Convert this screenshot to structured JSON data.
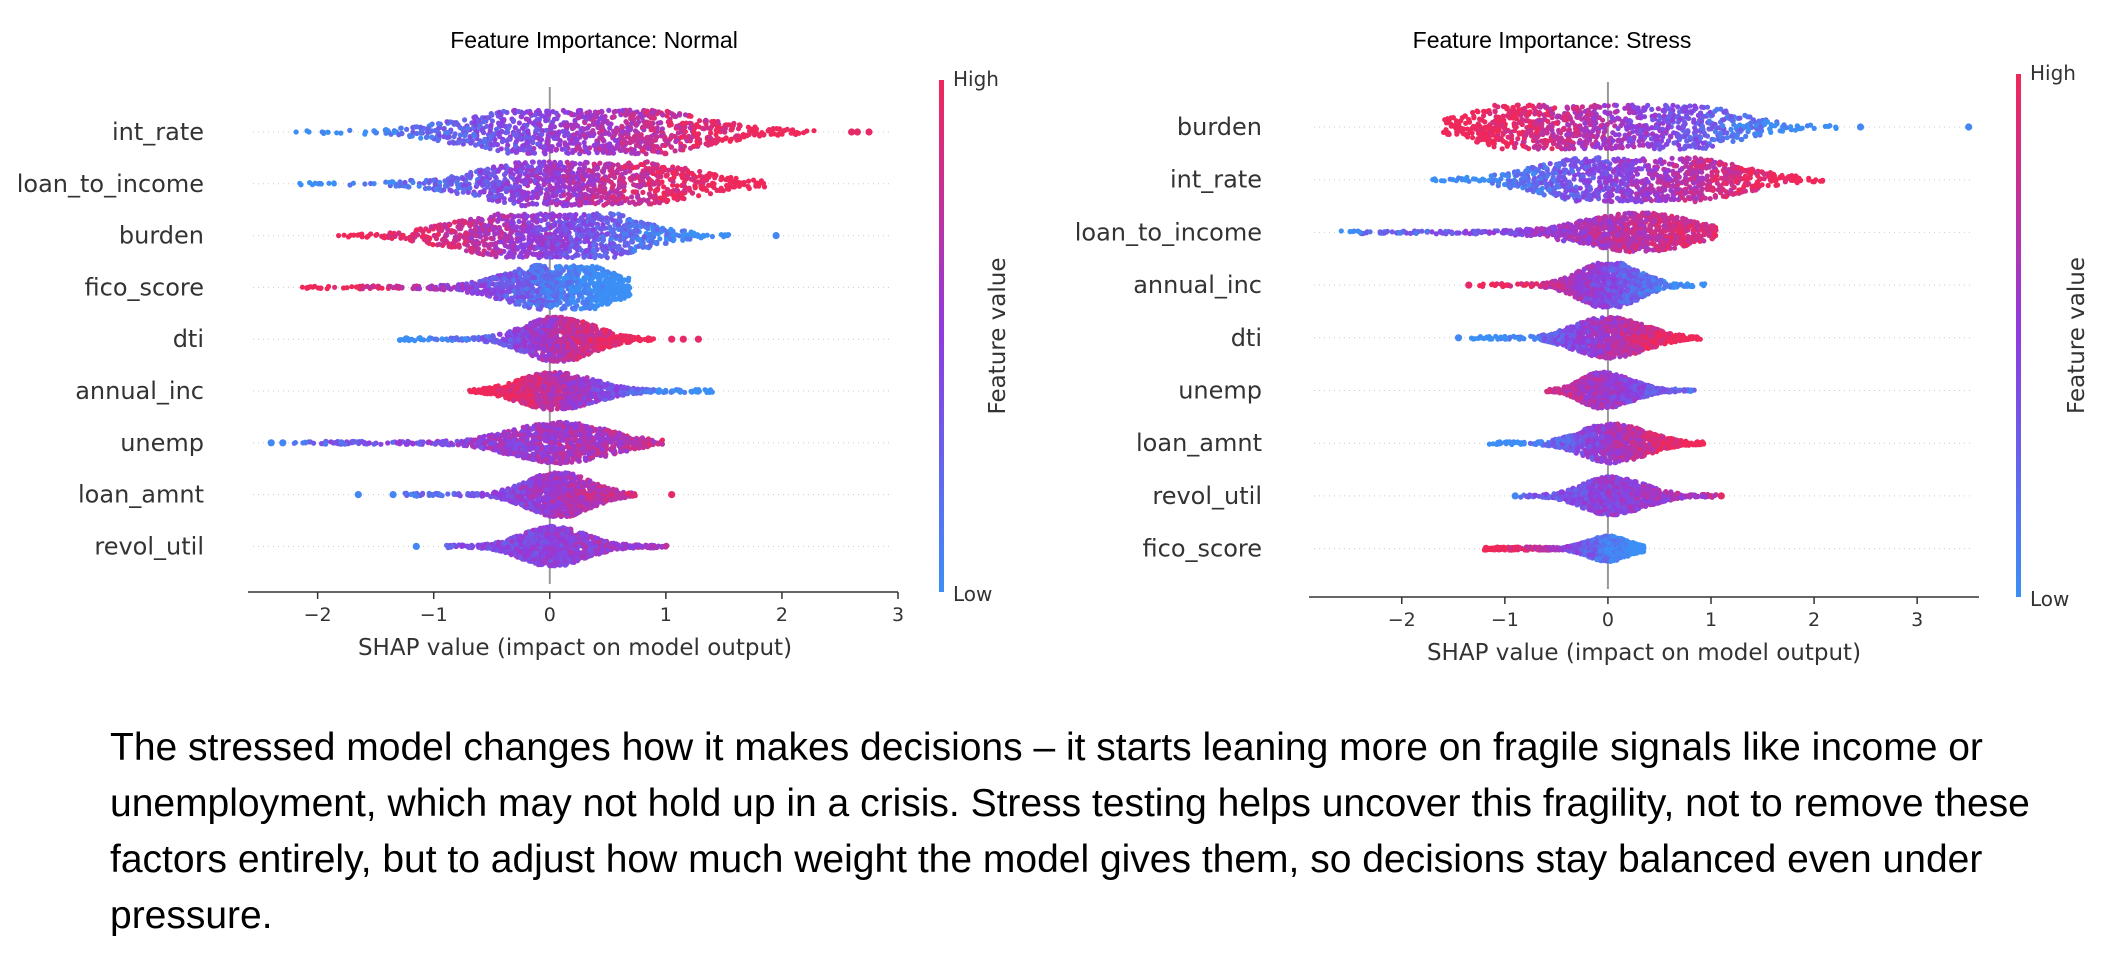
{
  "colors": {
    "low": "#3b8ff5",
    "mid": "#8f3be0",
    "high": "#f0285a",
    "zero_line": "#999999",
    "axis": "#333333"
  },
  "chart_data": [
    {
      "type": "scatter",
      "subtype": "shap_beeswarm",
      "title": "Feature Importance: Normal",
      "xlabel": "SHAP value (impact on model output)",
      "xlim": [
        -2.6,
        3.0
      ],
      "xticks": [
        -2,
        -1,
        0,
        1,
        2,
        3
      ],
      "xtick_labels": [
        "−2",
        "−1",
        "0",
        "1",
        "2",
        "3"
      ],
      "colorbar": {
        "title": "Feature value",
        "high_label": "High",
        "low_label": "Low"
      },
      "features": [
        {
          "name": "int_rate",
          "min": -2.3,
          "max": 2.3,
          "peaks": [
            [
              -0.4,
              0.55
            ],
            [
              0.35,
              0.85
            ],
            [
              1.0,
              0.5
            ]
          ],
          "color_trend": 1,
          "outliers": [
            2.6,
            2.65,
            2.75
          ]
        },
        {
          "name": "loan_to_income",
          "min": -2.25,
          "max": 1.85,
          "peaks": [
            [
              -0.3,
              0.6
            ],
            [
              0.4,
              0.8
            ],
            [
              1.0,
              0.45
            ]
          ],
          "color_trend": 1,
          "outliers": []
        },
        {
          "name": "burden",
          "min": -1.85,
          "max": 1.7,
          "peaks": [
            [
              -0.6,
              0.55
            ],
            [
              0.0,
              0.55
            ],
            [
              0.4,
              0.8
            ]
          ],
          "color_trend": -1,
          "outliers": [
            1.95
          ]
        },
        {
          "name": "fico_score",
          "min": -2.15,
          "max": 0.7,
          "peaks": [
            [
              -0.3,
              0.3
            ],
            [
              0.1,
              0.55
            ],
            [
              0.25,
              0.55
            ]
          ],
          "color_trend": -1,
          "outliers": []
        },
        {
          "name": "dti",
          "min": -1.3,
          "max": 0.9,
          "peaks": [
            [
              0.0,
              0.65
            ],
            [
              0.2,
              0.45
            ]
          ],
          "color_trend": 1,
          "outliers": [
            1.05,
            1.15,
            1.28
          ]
        },
        {
          "name": "annual_inc",
          "min": -0.7,
          "max": 1.4,
          "peaks": [
            [
              -0.05,
              0.65
            ],
            [
              0.3,
              0.35
            ]
          ],
          "color_trend": -1,
          "outliers": []
        },
        {
          "name": "unemp",
          "min": -2.25,
          "max": 1.0,
          "peaks": [
            [
              0.0,
              0.6
            ],
            [
              0.25,
              0.35
            ]
          ],
          "color_trend": 0.4,
          "outliers": [
            -2.4,
            -2.3
          ]
        },
        {
          "name": "loan_amnt",
          "min": -1.25,
          "max": 0.75,
          "peaks": [
            [
              0.0,
              0.65
            ],
            [
              0.2,
              0.45
            ]
          ],
          "color_trend": 0.5,
          "outliers": [
            -1.65,
            -1.35,
            1.05
          ]
        },
        {
          "name": "revol_util",
          "min": -0.9,
          "max": 1.05,
          "peaks": [
            [
              -0.05,
              0.65
            ],
            [
              0.2,
              0.35
            ]
          ],
          "color_trend": 0.2,
          "outliers": [
            -1.15
          ]
        }
      ]
    },
    {
      "type": "scatter",
      "subtype": "shap_beeswarm",
      "title": "Feature Importance: Stress",
      "xlabel": "SHAP value (impact on model output)",
      "xlim": [
        -2.9,
        3.6
      ],
      "xticks": [
        -2,
        -1,
        0,
        1,
        2,
        3
      ],
      "xtick_labels": [
        "−2",
        "−1",
        "0",
        "1",
        "2",
        "3"
      ],
      "colorbar": {
        "title": "Feature value",
        "high_label": "High",
        "low_label": "Low"
      },
      "features": [
        {
          "name": "burden",
          "min": -1.6,
          "max": 2.3,
          "peaks": [
            [
              -0.9,
              0.9
            ],
            [
              -0.3,
              0.6
            ],
            [
              0.4,
              0.85
            ],
            [
              1.0,
              0.5
            ]
          ],
          "color_trend": -1,
          "outliers": [
            2.45,
            3.5
          ]
        },
        {
          "name": "int_rate",
          "min": -1.8,
          "max": 2.1,
          "peaks": [
            [
              -0.4,
              0.6
            ],
            [
              0.3,
              0.8
            ],
            [
              1.0,
              0.6
            ]
          ],
          "color_trend": 1,
          "outliers": []
        },
        {
          "name": "loan_to_income",
          "min": -2.6,
          "max": 1.05,
          "peaks": [
            [
              -0.2,
              0.25
            ],
            [
              0.4,
              0.75
            ]
          ],
          "color_trend": 0.6,
          "outliers": []
        },
        {
          "name": "annual_inc",
          "min": -1.25,
          "max": 0.95,
          "peaks": [
            [
              -0.05,
              0.65
            ],
            [
              0.1,
              0.45
            ]
          ],
          "color_trend": -1,
          "outliers": [
            -1.35
          ]
        },
        {
          "name": "dti",
          "min": -1.35,
          "max": 0.9,
          "peaks": [
            [
              -0.1,
              0.7
            ],
            [
              0.25,
              0.4
            ]
          ],
          "color_trend": 1,
          "outliers": [
            -1.45
          ]
        },
        {
          "name": "unemp",
          "min": -0.6,
          "max": 0.85,
          "peaks": [
            [
              -0.1,
              0.7
            ],
            [
              0.2,
              0.35
            ]
          ],
          "color_trend": -0.5,
          "outliers": []
        },
        {
          "name": "loan_amnt",
          "min": -1.15,
          "max": 0.95,
          "peaks": [
            [
              -0.05,
              0.7
            ],
            [
              0.3,
              0.35
            ]
          ],
          "color_trend": 1,
          "outliers": []
        },
        {
          "name": "revol_util",
          "min": -0.85,
          "max": 1.05,
          "peaks": [
            [
              -0.05,
              0.7
            ],
            [
              0.3,
              0.35
            ]
          ],
          "color_trend": 0.3,
          "outliers": [
            -0.9,
            1.1
          ]
        },
        {
          "name": "fico_score",
          "min": -1.2,
          "max": 0.35,
          "peaks": [
            [
              0.0,
              0.55
            ]
          ],
          "color_trend": -1,
          "outliers": []
        }
      ]
    }
  ],
  "caption": "The stressed model changes how it makes decisions – it starts leaning more on fragile signals like income or unemployment, which may not hold up in a crisis. Stress testing helps uncover this fragility, not to remove these factors entirely, but to adjust how much weight the model gives them, so decisions stay balanced even under pressure."
}
